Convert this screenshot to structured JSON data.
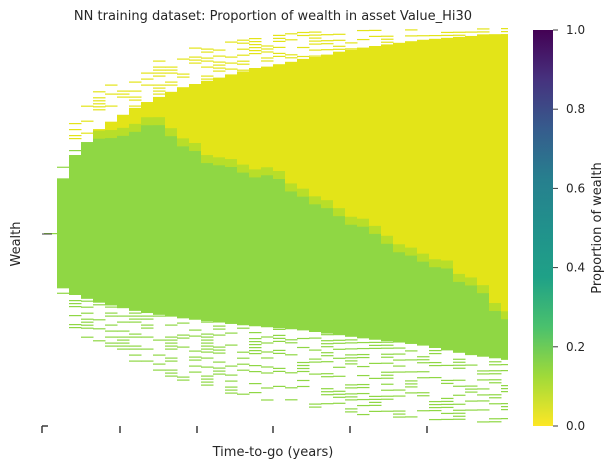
{
  "chart_data": {
    "type": "heatmap",
    "title": "NN training dataset: Proportion of wealth in asset Value_Hi30",
    "xlabel": "Time-to-go (years)",
    "ylabel": "Wealth",
    "colorbar": {
      "label": "Proportion of wealth",
      "range": [
        0,
        1
      ],
      "ticks": [
        "0.0",
        "0.2",
        "0.4",
        "0.6",
        "0.8",
        "1.0"
      ],
      "colormap": "viridis (reversed)"
    },
    "x_ticks": [
      "",
      "",
      "",
      "",
      "",
      ""
    ],
    "y_ticks": [
      ""
    ],
    "grid": false,
    "description_values": {
      "low_wealth_proportion": 0.2,
      "high_wealth_proportion": 0.0,
      "long_horizon_fraction_near_zero": 0.05
    },
    "colors": {
      "green": "#8fd744",
      "yellow": "#e3e418",
      "yellow_green": "#b8de29"
    }
  }
}
